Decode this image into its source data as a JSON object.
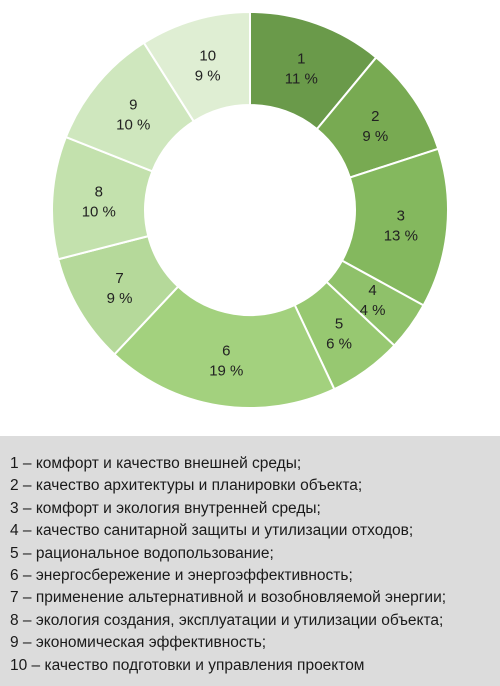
{
  "chart_data": {
    "type": "pie",
    "categories": [
      "1",
      "2",
      "3",
      "4",
      "5",
      "6",
      "7",
      "8",
      "9",
      "10"
    ],
    "values": [
      11,
      9,
      13,
      4,
      6,
      19,
      9,
      10,
      10,
      9
    ],
    "value_labels": [
      "11 %",
      "9 %",
      "13 %",
      "4 %",
      "6 %",
      "19 %",
      "9 %",
      "10 %",
      "10 %",
      "9 %"
    ],
    "colors": [
      "#6a9a4a",
      "#78aa52",
      "#84b85e",
      "#8fc16a",
      "#97c871",
      "#a3d17e",
      "#b5d99a",
      "#c3e1ad",
      "#cfe7be",
      "#dfeed3"
    ],
    "donut": true,
    "legend_position": "bottom",
    "legend": [
      "1 – комфорт и качество внешней среды;",
      "2 – качество архитектуры и планировки объекта;",
      "3 – комфорт и экология внутренней среды;",
      "4 – качество санитарной защиты и утилизации отходов;",
      "5 – рациональное водопользование;",
      "6 – энергосбережение и энергоэффективность;",
      "7 – применение альтернативной и возобновляемой энергии;",
      "8 – экология создания, эксплуатации и утилизации объекта;",
      "9 – экономическая эффективность;",
      "10 – качество подготовки и управления проектом"
    ]
  }
}
